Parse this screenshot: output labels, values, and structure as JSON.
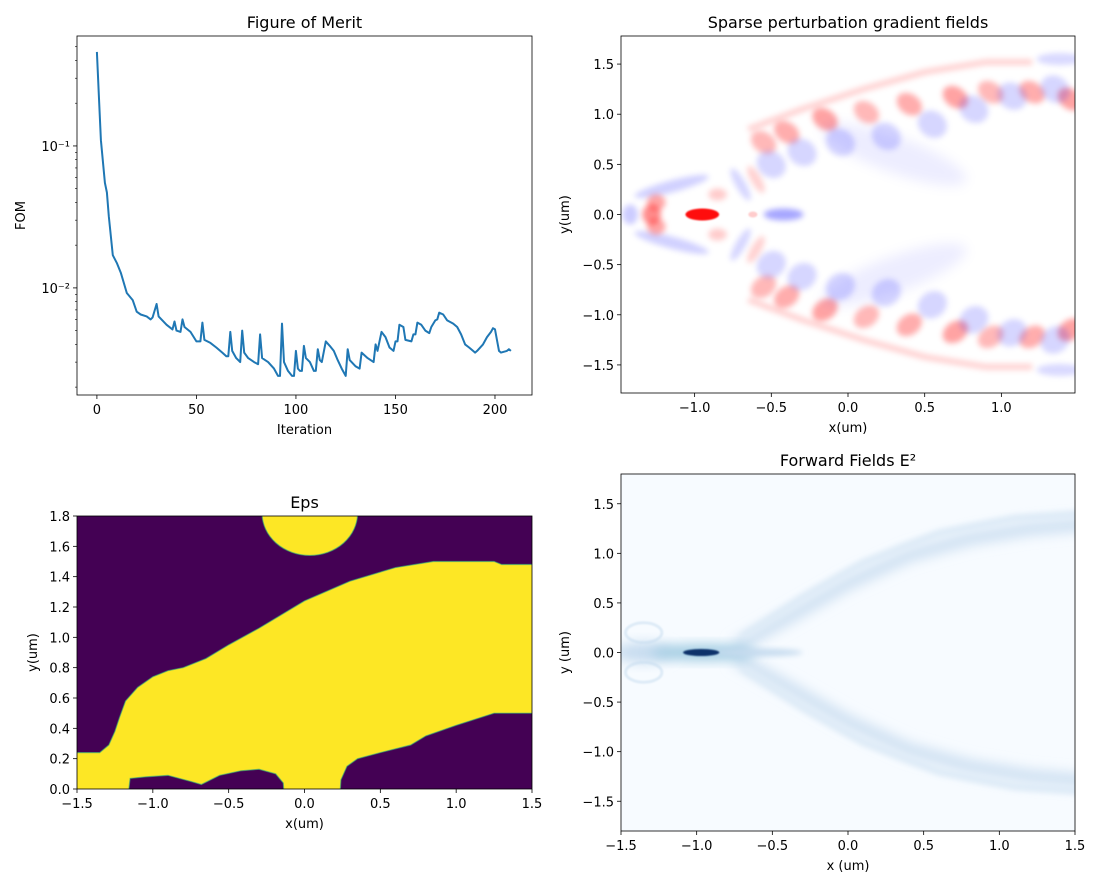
{
  "chart_data": [
    {
      "type": "line",
      "title": "Figure of Merit",
      "xlabel": "Iteration",
      "ylabel": "FOM",
      "yscale": "log",
      "xlim": [
        -10,
        218.6
      ],
      "ylim": [
        0.00176,
        0.595
      ],
      "xticks": [
        0,
        50,
        100,
        150,
        200
      ],
      "xtick_labels": [
        "0",
        "50",
        "100",
        "150",
        "200"
      ],
      "yticks": [
        0.1,
        0.01
      ],
      "ytick_labels": [
        "10⁻¹",
        "10⁻²"
      ],
      "grid": false,
      "color": "#1f77b4",
      "x": [
        0,
        1,
        2,
        4,
        5,
        6,
        8,
        10,
        12,
        15,
        18,
        20,
        22,
        25,
        27,
        28,
        30,
        31,
        35,
        38,
        39,
        40,
        42,
        43,
        44,
        47,
        50,
        52,
        53,
        54,
        57,
        60,
        63,
        65,
        66,
        67,
        68,
        70,
        72,
        73,
        74,
        76,
        79,
        81,
        82,
        83,
        86,
        89,
        91,
        92,
        93,
        94,
        96,
        98,
        99,
        100,
        101,
        102,
        103,
        104,
        105,
        107,
        109,
        110,
        111,
        112,
        113,
        115,
        117,
        119,
        121,
        123,
        125,
        126,
        127,
        130,
        132,
        133,
        136,
        139,
        140,
        141,
        143,
        145,
        147,
        149,
        150,
        151,
        152,
        154,
        155,
        158,
        159,
        160,
        161,
        163,
        165,
        167,
        168,
        170,
        171,
        172,
        174,
        176,
        179,
        181,
        183,
        185,
        187,
        189,
        190,
        191,
        194,
        196,
        198,
        199,
        200,
        202,
        203,
        206,
        207,
        208
      ],
      "y": [
        0.46,
        0.223,
        0.11,
        0.055,
        0.047,
        0.032,
        0.017,
        0.015,
        0.0128,
        0.0092,
        0.0082,
        0.0068,
        0.0065,
        0.0063,
        0.006,
        0.0062,
        0.0077,
        0.0063,
        0.0055,
        0.0051,
        0.0058,
        0.005,
        0.0049,
        0.006,
        0.0053,
        0.0049,
        0.0042,
        0.0042,
        0.0057,
        0.0043,
        0.0041,
        0.0038,
        0.0035,
        0.0033,
        0.0033,
        0.0049,
        0.0036,
        0.0032,
        0.003,
        0.005,
        0.0035,
        0.0032,
        0.003,
        0.0029,
        0.0047,
        0.0032,
        0.003,
        0.0027,
        0.0024,
        0.0024,
        0.0056,
        0.003,
        0.0026,
        0.0024,
        0.0024,
        0.0036,
        0.0027,
        0.0026,
        0.0026,
        0.0039,
        0.0032,
        0.003,
        0.0026,
        0.0026,
        0.0037,
        0.0031,
        0.003,
        0.0042,
        0.0039,
        0.0036,
        0.0031,
        0.0027,
        0.0024,
        0.0037,
        0.0031,
        0.0028,
        0.0027,
        0.0035,
        0.0032,
        0.003,
        0.004,
        0.0036,
        0.0049,
        0.0045,
        0.0038,
        0.0036,
        0.0042,
        0.0042,
        0.0055,
        0.0053,
        0.0043,
        0.0042,
        0.0047,
        0.0047,
        0.0057,
        0.0055,
        0.005,
        0.0048,
        0.0053,
        0.0059,
        0.006,
        0.0067,
        0.0065,
        0.0059,
        0.0056,
        0.0053,
        0.0047,
        0.004,
        0.0038,
        0.0036,
        0.0035,
        0.0036,
        0.004,
        0.0045,
        0.0049,
        0.0052,
        0.0051,
        0.0036,
        0.0035,
        0.0036,
        0.0037,
        0.0036
      ]
    },
    {
      "type": "heatmap",
      "title": "Sparse perturbation gradient fields",
      "xlabel": "x(um)",
      "ylabel": "y(um)",
      "colormap": "bwr",
      "xlim": [
        -1.48,
        1.48
      ],
      "ylim": [
        -1.78,
        1.78
      ],
      "xticks": [
        -1.0,
        -0.5,
        0.0,
        0.5,
        1.0
      ],
      "xtick_labels": [
        "−1.0",
        "−0.5",
        "0.0",
        "0.5",
        "1.0"
      ],
      "yticks": [
        1.5,
        1.0,
        0.5,
        0.0,
        -0.5,
        -1.0,
        -1.5
      ],
      "ytick_labels": [
        "1.5",
        "1.0",
        "0.5",
        "0.0",
        "−0.5",
        "−1.0",
        "−1.5"
      ]
    },
    {
      "type": "heatmap",
      "title": "Eps",
      "xlabel": "x(um)",
      "ylabel": "y(um)",
      "colormap": "viridis",
      "colors": {
        "low": "#440154",
        "high": "#fde725"
      },
      "xlim": [
        -1.5,
        1.5
      ],
      "ylim": [
        0.0,
        1.8
      ],
      "xticks": [
        -1.5,
        -1.0,
        -0.5,
        0.0,
        0.5,
        1.0,
        1.5
      ],
      "xtick_labels": [
        "−1.5",
        "−1.0",
        "−0.5",
        "0.0",
        "0.5",
        "1.0",
        "1.5"
      ],
      "yticks": [
        0.0,
        0.2,
        0.4,
        0.6,
        0.8,
        1.0,
        1.2,
        1.4,
        1.6,
        1.8
      ],
      "ytick_labels": [
        "0.0",
        "0.2",
        "0.4",
        "0.6",
        "0.8",
        "1.0",
        "1.2",
        "1.4",
        "1.6",
        "1.8"
      ]
    },
    {
      "type": "heatmap",
      "title": "Forward Fields E²",
      "xlabel": "x (um)",
      "ylabel": "y (um)",
      "colormap": "Blues",
      "xlim": [
        -1.5,
        1.5
      ],
      "ylim": [
        -1.8,
        1.8
      ],
      "xticks": [
        -1.5,
        -1.0,
        -0.5,
        0.0,
        0.5,
        1.0,
        1.5
      ],
      "xtick_labels": [
        "−1.5",
        "−1.0",
        "−0.5",
        "0.0",
        "0.5",
        "1.0",
        "1.5"
      ],
      "yticks": [
        1.5,
        1.0,
        0.5,
        0.0,
        -0.5,
        -1.0,
        -1.5
      ],
      "ytick_labels": [
        "1.5",
        "1.0",
        "0.5",
        "0.0",
        "−0.5",
        "−1.0",
        "−1.5"
      ]
    }
  ]
}
